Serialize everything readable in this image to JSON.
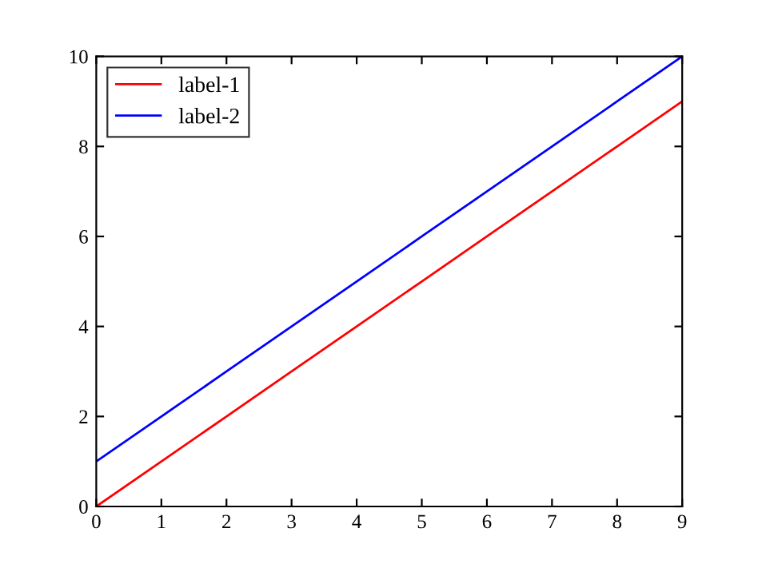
{
  "chart_data": {
    "type": "line",
    "x": [
      0,
      1,
      2,
      3,
      4,
      5,
      6,
      7,
      8,
      9
    ],
    "series": [
      {
        "name": "label-1",
        "color": "#ff0000",
        "values": [
          0,
          1,
          2,
          3,
          4,
          5,
          6,
          7,
          8,
          9
        ]
      },
      {
        "name": "label-2",
        "color": "#0000ff",
        "values": [
          1,
          2,
          3,
          4,
          5,
          6,
          7,
          8,
          9,
          10
        ]
      }
    ],
    "xlim": [
      0,
      9
    ],
    "xticks": [
      0,
      1,
      2,
      3,
      4,
      5,
      6,
      7,
      8,
      9
    ],
    "ylim": [
      0,
      10
    ],
    "yticks": [
      0,
      2,
      4,
      6,
      8,
      10
    ],
    "grid": false,
    "legend": "top left",
    "marker": "none",
    "line_style": "solid"
  }
}
